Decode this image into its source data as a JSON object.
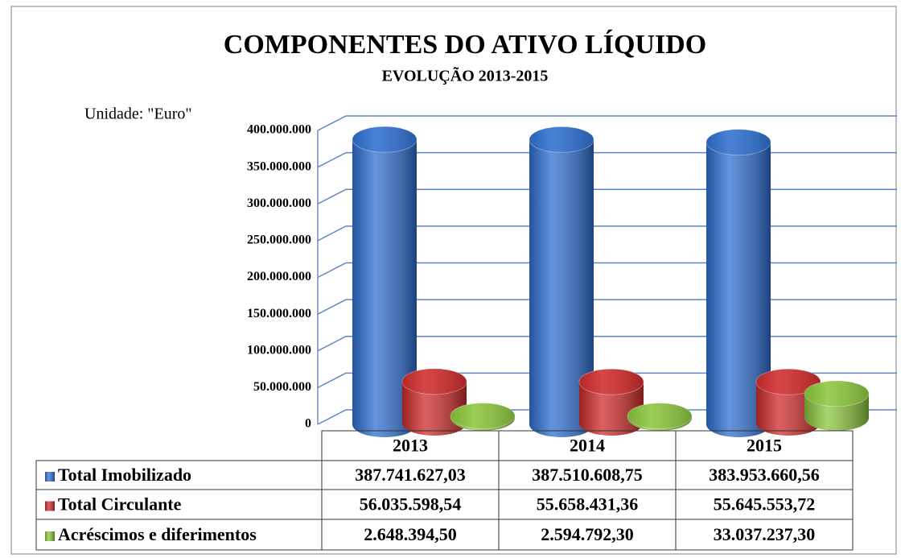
{
  "chart_data": {
    "type": "cylinder",
    "title": "COMPONENTES DO ATIVO LÍQUIDO",
    "subtitle": "EVOLUÇÃO 2013-2015",
    "annotation": "Unidade: \"Euro\"",
    "categories": [
      "2013",
      "2014",
      "2015"
    ],
    "series": [
      {
        "name": "Total Imobilizado",
        "color": "#2f6fd0",
        "values": [
          387741627.03,
          387510608.75,
          383953660.56
        ],
        "value_labels": [
          "387.741.627,03",
          "387.510.608,75",
          "383.953.660,56"
        ]
      },
      {
        "name": "Total Circulante",
        "color": "#cf2b2b",
        "values": [
          56035598.54,
          55658431.36,
          55645553.72
        ],
        "value_labels": [
          "56.035.598,54",
          "55.658.431,36",
          "55.645.553,72"
        ]
      },
      {
        "name": "Acréscimos e diferimentos",
        "color": "#8cc63e",
        "values": [
          2648394.5,
          2594792.3,
          33037237.3
        ],
        "value_labels": [
          "2.648.394,50",
          "2.594.792,30",
          "33.037.237,30"
        ]
      }
    ],
    "ylim": [
      0,
      400000000
    ],
    "yticks": [
      0,
      {
        "value": 50000000,
        "label": "50.000.000"
      },
      {
        "value": 100000000,
        "label": "100.000.000"
      },
      {
        "value": 150000000,
        "label": "150.000.000"
      },
      {
        "value": 200000000,
        "label": "200.000.000"
      },
      {
        "value": 250000000,
        "label": "250.000.000"
      },
      {
        "value": 300000000,
        "label": "300.000.000"
      },
      {
        "value": 350000000,
        "label": "350.000.000"
      },
      {
        "value": 400000000,
        "label": "400.000.000"
      }
    ],
    "grid": true
  }
}
